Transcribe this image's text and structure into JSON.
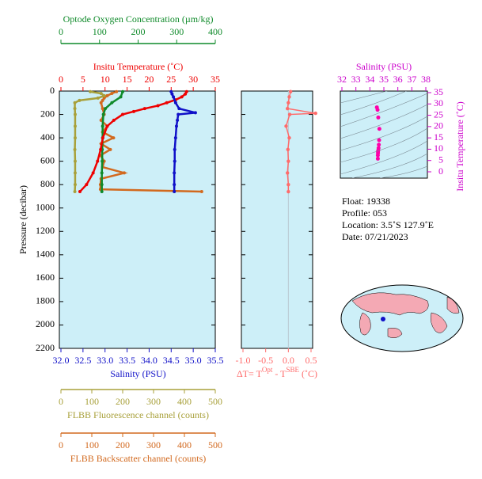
{
  "chart_data": [
    {
      "type": "profile",
      "ylabel": "Pressure (decibar)",
      "ylim": [
        0,
        2200
      ],
      "yticks": [
        0,
        200,
        400,
        600,
        800,
        1000,
        1200,
        1400,
        1600,
        1800,
        2000,
        2200
      ],
      "background": "#cdeff8",
      "axes": [
        {
          "label": "Optode Oxygen Concentration (µm/kg)",
          "color": "#0f8a2a",
          "xlim": [
            0,
            400
          ],
          "xticks": [
            0,
            100,
            200,
            300,
            400
          ]
        },
        {
          "label": "Insitu Temperature (˚C)",
          "color": "#ee0000",
          "xlim": [
            0,
            35
          ],
          "xticks": [
            0,
            5,
            10,
            15,
            20,
            25,
            30,
            35
          ]
        },
        {
          "label": "Salinity (PSU)",
          "color": "#1010c8",
          "xlim": [
            32,
            35.5
          ],
          "xticks": [
            {
              "value": 32,
              "label": "32.0"
            },
            32.5,
            {
              "value": 33,
              "label": "33.0"
            },
            33.5,
            {
              "value": 34,
              "label": "34.0"
            },
            34.5,
            {
              "value": 35,
              "label": "35.0"
            },
            35.5
          ]
        },
        {
          "label": "FLBB Fluorescence channel (counts)",
          "color": "#a8a03a",
          "xlim": [
            0,
            500
          ],
          "xticks": [
            0,
            100,
            200,
            300,
            400,
            500
          ]
        },
        {
          "label": "FLBB Backscatter channel (counts)",
          "color": "#d2691e",
          "xlim": [
            0,
            500
          ],
          "xticks": [
            0,
            100,
            200,
            300,
            400,
            500
          ]
        }
      ],
      "series": [
        {
          "axis": 4,
          "color": "#d2691e",
          "pressure": [
            5,
            20,
            40,
            60,
            80,
            100,
            150,
            200,
            250,
            300,
            350,
            400,
            450,
            500,
            550,
            600,
            650,
            700,
            750,
            800,
            840,
            860
          ],
          "values": [
            180,
            165,
            150,
            140,
            135,
            130,
            135,
            140,
            130,
            150,
            135,
            170,
            130,
            160,
            128,
            140,
            135,
            205,
            130,
            128,
            128,
            456
          ]
        },
        {
          "axis": 3,
          "color": "#a8a03a",
          "pressure": [
            5,
            20,
            40,
            60,
            80,
            100,
            150,
            200,
            300,
            400,
            500,
            600,
            700,
            800,
            860
          ],
          "values": [
            95,
            130,
            140,
            120,
            60,
            45,
            45,
            46,
            46,
            46,
            45,
            46,
            46,
            46,
            45
          ]
        },
        {
          "axis": 0,
          "color": "#0f8a2a",
          "pressure": [
            5,
            50,
            100,
            150,
            200,
            300,
            400,
            500,
            600,
            700,
            800,
            860
          ],
          "values": [
            160,
            155,
            132,
            115,
            110,
            108,
            108,
            107,
            107,
            106,
            106,
            106
          ]
        },
        {
          "axis": 1,
          "color": "#ee0000",
          "pressure": [
            5,
            25,
            50,
            75,
            100,
            125,
            150,
            175,
            200,
            250,
            300,
            400,
            500,
            600,
            700,
            800,
            860
          ],
          "values": [
            28.5,
            28.2,
            27.4,
            26,
            24,
            22,
            19,
            16.5,
            14,
            12,
            10.5,
            9.5,
            9,
            8.3,
            7.3,
            5.8,
            4.3
          ]
        },
        {
          "axis": 2,
          "color": "#1010c8",
          "pressure": [
            5,
            25,
            50,
            100,
            150,
            185,
            200,
            250,
            300,
            400,
            500,
            600,
            700,
            800,
            860
          ],
          "values": [
            34.5,
            34.52,
            34.55,
            34.6,
            34.68,
            35.05,
            34.66,
            34.64,
            34.62,
            34.6,
            34.58,
            34.58,
            34.57,
            34.57,
            34.57
          ]
        }
      ]
    },
    {
      "type": "delta",
      "xlabel": [
        "ΔT= T",
        "Opt",
        " - T",
        "SBE",
        " (˚C)"
      ],
      "color": "#ff6b6b",
      "background": "#cdeff8",
      "xlim": [
        -1,
        0.5
      ],
      "xticks": [
        {
          "value": -1,
          "label": "-1.0"
        },
        -0.5,
        {
          "value": 0,
          "label": "0.0"
        },
        0.5
      ],
      "ylim": [
        0,
        2200
      ],
      "yticks": [
        0,
        200,
        400,
        600,
        800,
        1000,
        1200,
        1400,
        1600,
        1800,
        2000,
        2200
      ],
      "pressure": [
        5,
        50,
        100,
        150,
        190,
        200,
        300,
        400,
        500,
        600,
        700,
        800,
        860
      ],
      "values": [
        0.05,
        0.02,
        0,
        -0.02,
        0.6,
        0.03,
        -0.05,
        0.02,
        -0.01,
        0,
        -0.02,
        0,
        0
      ]
    },
    {
      "type": "ts",
      "xlabel": "Salinity (PSU)",
      "ylabel": "Insitu Temperature (˚C)",
      "color": "#ff00aa",
      "axis_color": "#cc00cc",
      "background": "#cdeff8",
      "xlim": [
        32,
        38
      ],
      "xticks": [
        32,
        33,
        34,
        35,
        36,
        37,
        38
      ],
      "ylim": [
        0,
        35
      ],
      "yticks": [
        0,
        5,
        10,
        15,
        20,
        25,
        30,
        35
      ],
      "x": [
        34.5,
        34.55,
        34.6,
        34.68,
        34.66,
        34.64,
        34.62,
        34.6,
        34.58,
        34.58,
        34.57,
        34.57
      ],
      "values": [
        28.5,
        27.4,
        24,
        19,
        14,
        12,
        10.5,
        9.5,
        9,
        8.3,
        7.3,
        5.8
      ]
    }
  ],
  "info": [
    "Float:  19338",
    "Profile:  053",
    "Location:  3.5˚S  127.9˚E",
    "Date:  07/21/2023"
  ]
}
